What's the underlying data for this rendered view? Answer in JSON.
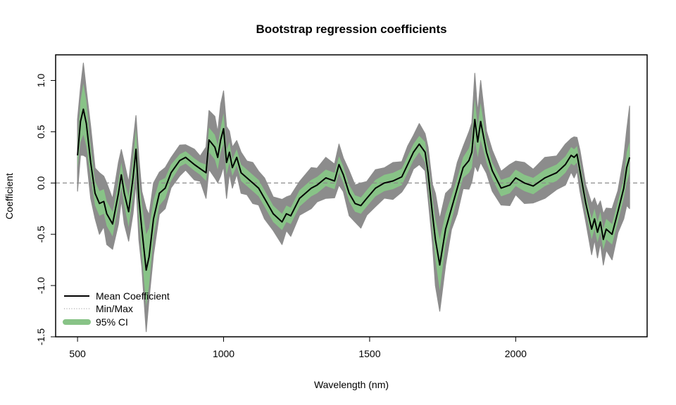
{
  "chart_data": {
    "type": "line",
    "title": "Bootstrap regression coefficients",
    "xlabel": "Wavelength (nm)",
    "ylabel": "Coefficient",
    "xlim": [
      425,
      2450
    ],
    "ylim": [
      -1.5,
      1.25
    ],
    "xticks": [
      500,
      1000,
      1500,
      2000
    ],
    "yticks": [
      -1.5,
      -1.0,
      -0.5,
      0.0,
      0.5,
      1.0
    ],
    "xtick_labels": [
      "500",
      "1000",
      "1500",
      "2000"
    ],
    "ytick_labels": [
      "-1.5",
      "-1.0",
      "-0.5",
      "0.0",
      "0.5",
      "1.0"
    ],
    "reference_line_y": 0,
    "legend": {
      "position": "bottom-left",
      "entries": [
        "Mean Coefficient",
        "Min/Max",
        "95% CI"
      ]
    },
    "colors": {
      "mean": "#000000",
      "minmax": "#8c8c8c",
      "ci": "#88c387",
      "reference": "#8c8c8c"
    },
    "series": [
      {
        "name": "Mean Coefficient",
        "x": [
          500,
          510,
          520,
          530,
          545,
          560,
          575,
          590,
          600,
          620,
          640,
          650,
          660,
          675,
          690,
          700,
          710,
          720,
          735,
          745,
          760,
          780,
          800,
          820,
          850,
          870,
          900,
          920,
          940,
          950,
          970,
          980,
          990,
          1000,
          1010,
          1020,
          1030,
          1045,
          1060,
          1080,
          1100,
          1120,
          1140,
          1170,
          1200,
          1215,
          1230,
          1260,
          1300,
          1320,
          1350,
          1380,
          1395,
          1410,
          1430,
          1450,
          1470,
          1490,
          1520,
          1550,
          1580,
          1610,
          1630,
          1650,
          1670,
          1690,
          1700,
          1715,
          1725,
          1740,
          1760,
          1780,
          1800,
          1820,
          1840,
          1850,
          1860,
          1870,
          1880,
          1900,
          1920,
          1950,
          1980,
          2000,
          2030,
          2060,
          2100,
          2140,
          2170,
          2190,
          2200,
          2210,
          2220,
          2240,
          2260,
          2270,
          2280,
          2290,
          2300,
          2310,
          2330,
          2350,
          2370,
          2380,
          2390
        ],
        "y": [
          0.27,
          0.6,
          0.72,
          0.58,
          0.2,
          -0.1,
          -0.2,
          -0.18,
          -0.3,
          -0.4,
          -0.1,
          0.08,
          -0.1,
          -0.28,
          0.05,
          0.33,
          -0.15,
          -0.45,
          -0.85,
          -0.72,
          -0.35,
          -0.1,
          -0.05,
          0.1,
          0.22,
          0.25,
          0.18,
          0.14,
          0.1,
          0.42,
          0.35,
          0.25,
          0.42,
          0.53,
          0.2,
          0.3,
          0.15,
          0.25,
          0.1,
          0.05,
          0.0,
          -0.05,
          -0.15,
          -0.3,
          -0.38,
          -0.3,
          -0.32,
          -0.15,
          -0.05,
          -0.02,
          0.05,
          0.02,
          0.18,
          0.08,
          -0.1,
          -0.2,
          -0.22,
          -0.15,
          -0.05,
          0.0,
          0.02,
          0.06,
          0.18,
          0.3,
          0.38,
          0.3,
          0.1,
          -0.3,
          -0.55,
          -0.8,
          -0.45,
          -0.25,
          -0.05,
          0.15,
          0.22,
          0.3,
          0.62,
          0.4,
          0.6,
          0.3,
          0.12,
          -0.05,
          -0.02,
          0.05,
          0.0,
          -0.03,
          0.05,
          0.1,
          0.18,
          0.27,
          0.25,
          0.28,
          0.12,
          -0.2,
          -0.45,
          -0.35,
          -0.48,
          -0.38,
          -0.55,
          -0.45,
          -0.5,
          -0.28,
          -0.05,
          0.15,
          0.25
        ],
        "ci_halfwidth": [
          0.12,
          0.2,
          0.25,
          0.22,
          0.15,
          0.12,
          0.12,
          0.12,
          0.12,
          0.12,
          0.12,
          0.12,
          0.12,
          0.15,
          0.18,
          0.2,
          0.2,
          0.25,
          0.35,
          0.28,
          0.18,
          0.12,
          0.1,
          0.08,
          0.06,
          0.06,
          0.06,
          0.06,
          0.08,
          0.12,
          0.12,
          0.12,
          0.12,
          0.15,
          0.12,
          0.1,
          0.08,
          0.08,
          0.08,
          0.08,
          0.08,
          0.08,
          0.08,
          0.08,
          0.08,
          0.08,
          0.08,
          0.08,
          0.08,
          0.08,
          0.08,
          0.08,
          0.08,
          0.08,
          0.08,
          0.08,
          0.08,
          0.08,
          0.08,
          0.08,
          0.08,
          0.08,
          0.08,
          0.08,
          0.08,
          0.1,
          0.12,
          0.15,
          0.2,
          0.25,
          0.15,
          0.12,
          0.1,
          0.1,
          0.12,
          0.15,
          0.2,
          0.15,
          0.18,
          0.1,
          0.08,
          0.08,
          0.08,
          0.08,
          0.08,
          0.08,
          0.08,
          0.08,
          0.08,
          0.08,
          0.08,
          0.08,
          0.08,
          0.08,
          0.1,
          0.1,
          0.1,
          0.1,
          0.1,
          0.1,
          0.1,
          0.1,
          0.1,
          0.15,
          0.15
        ],
        "minmax_halfwidth": [
          0.35,
          0.4,
          0.45,
          0.4,
          0.35,
          0.3,
          0.3,
          0.3,
          0.3,
          0.3,
          0.3,
          0.3,
          0.3,
          0.35,
          0.35,
          0.4,
          0.4,
          0.45,
          0.6,
          0.5,
          0.35,
          0.25,
          0.2,
          0.18,
          0.15,
          0.15,
          0.15,
          0.15,
          0.25,
          0.35,
          0.3,
          0.3,
          0.35,
          0.45,
          0.35,
          0.25,
          0.2,
          0.2,
          0.2,
          0.2,
          0.2,
          0.2,
          0.2,
          0.2,
          0.22,
          0.2,
          0.2,
          0.2,
          0.2,
          0.2,
          0.2,
          0.2,
          0.2,
          0.2,
          0.22,
          0.22,
          0.22,
          0.2,
          0.18,
          0.18,
          0.18,
          0.18,
          0.18,
          0.2,
          0.2,
          0.22,
          0.25,
          0.35,
          0.45,
          0.55,
          0.35,
          0.25,
          0.25,
          0.25,
          0.28,
          0.35,
          0.45,
          0.35,
          0.4,
          0.25,
          0.2,
          0.2,
          0.2,
          0.2,
          0.2,
          0.2,
          0.2,
          0.2,
          0.2,
          0.2,
          0.2,
          0.2,
          0.2,
          0.22,
          0.25,
          0.25,
          0.25,
          0.25,
          0.25,
          0.25,
          0.25,
          0.25,
          0.3,
          0.45,
          0.5
        ]
      }
    ]
  }
}
